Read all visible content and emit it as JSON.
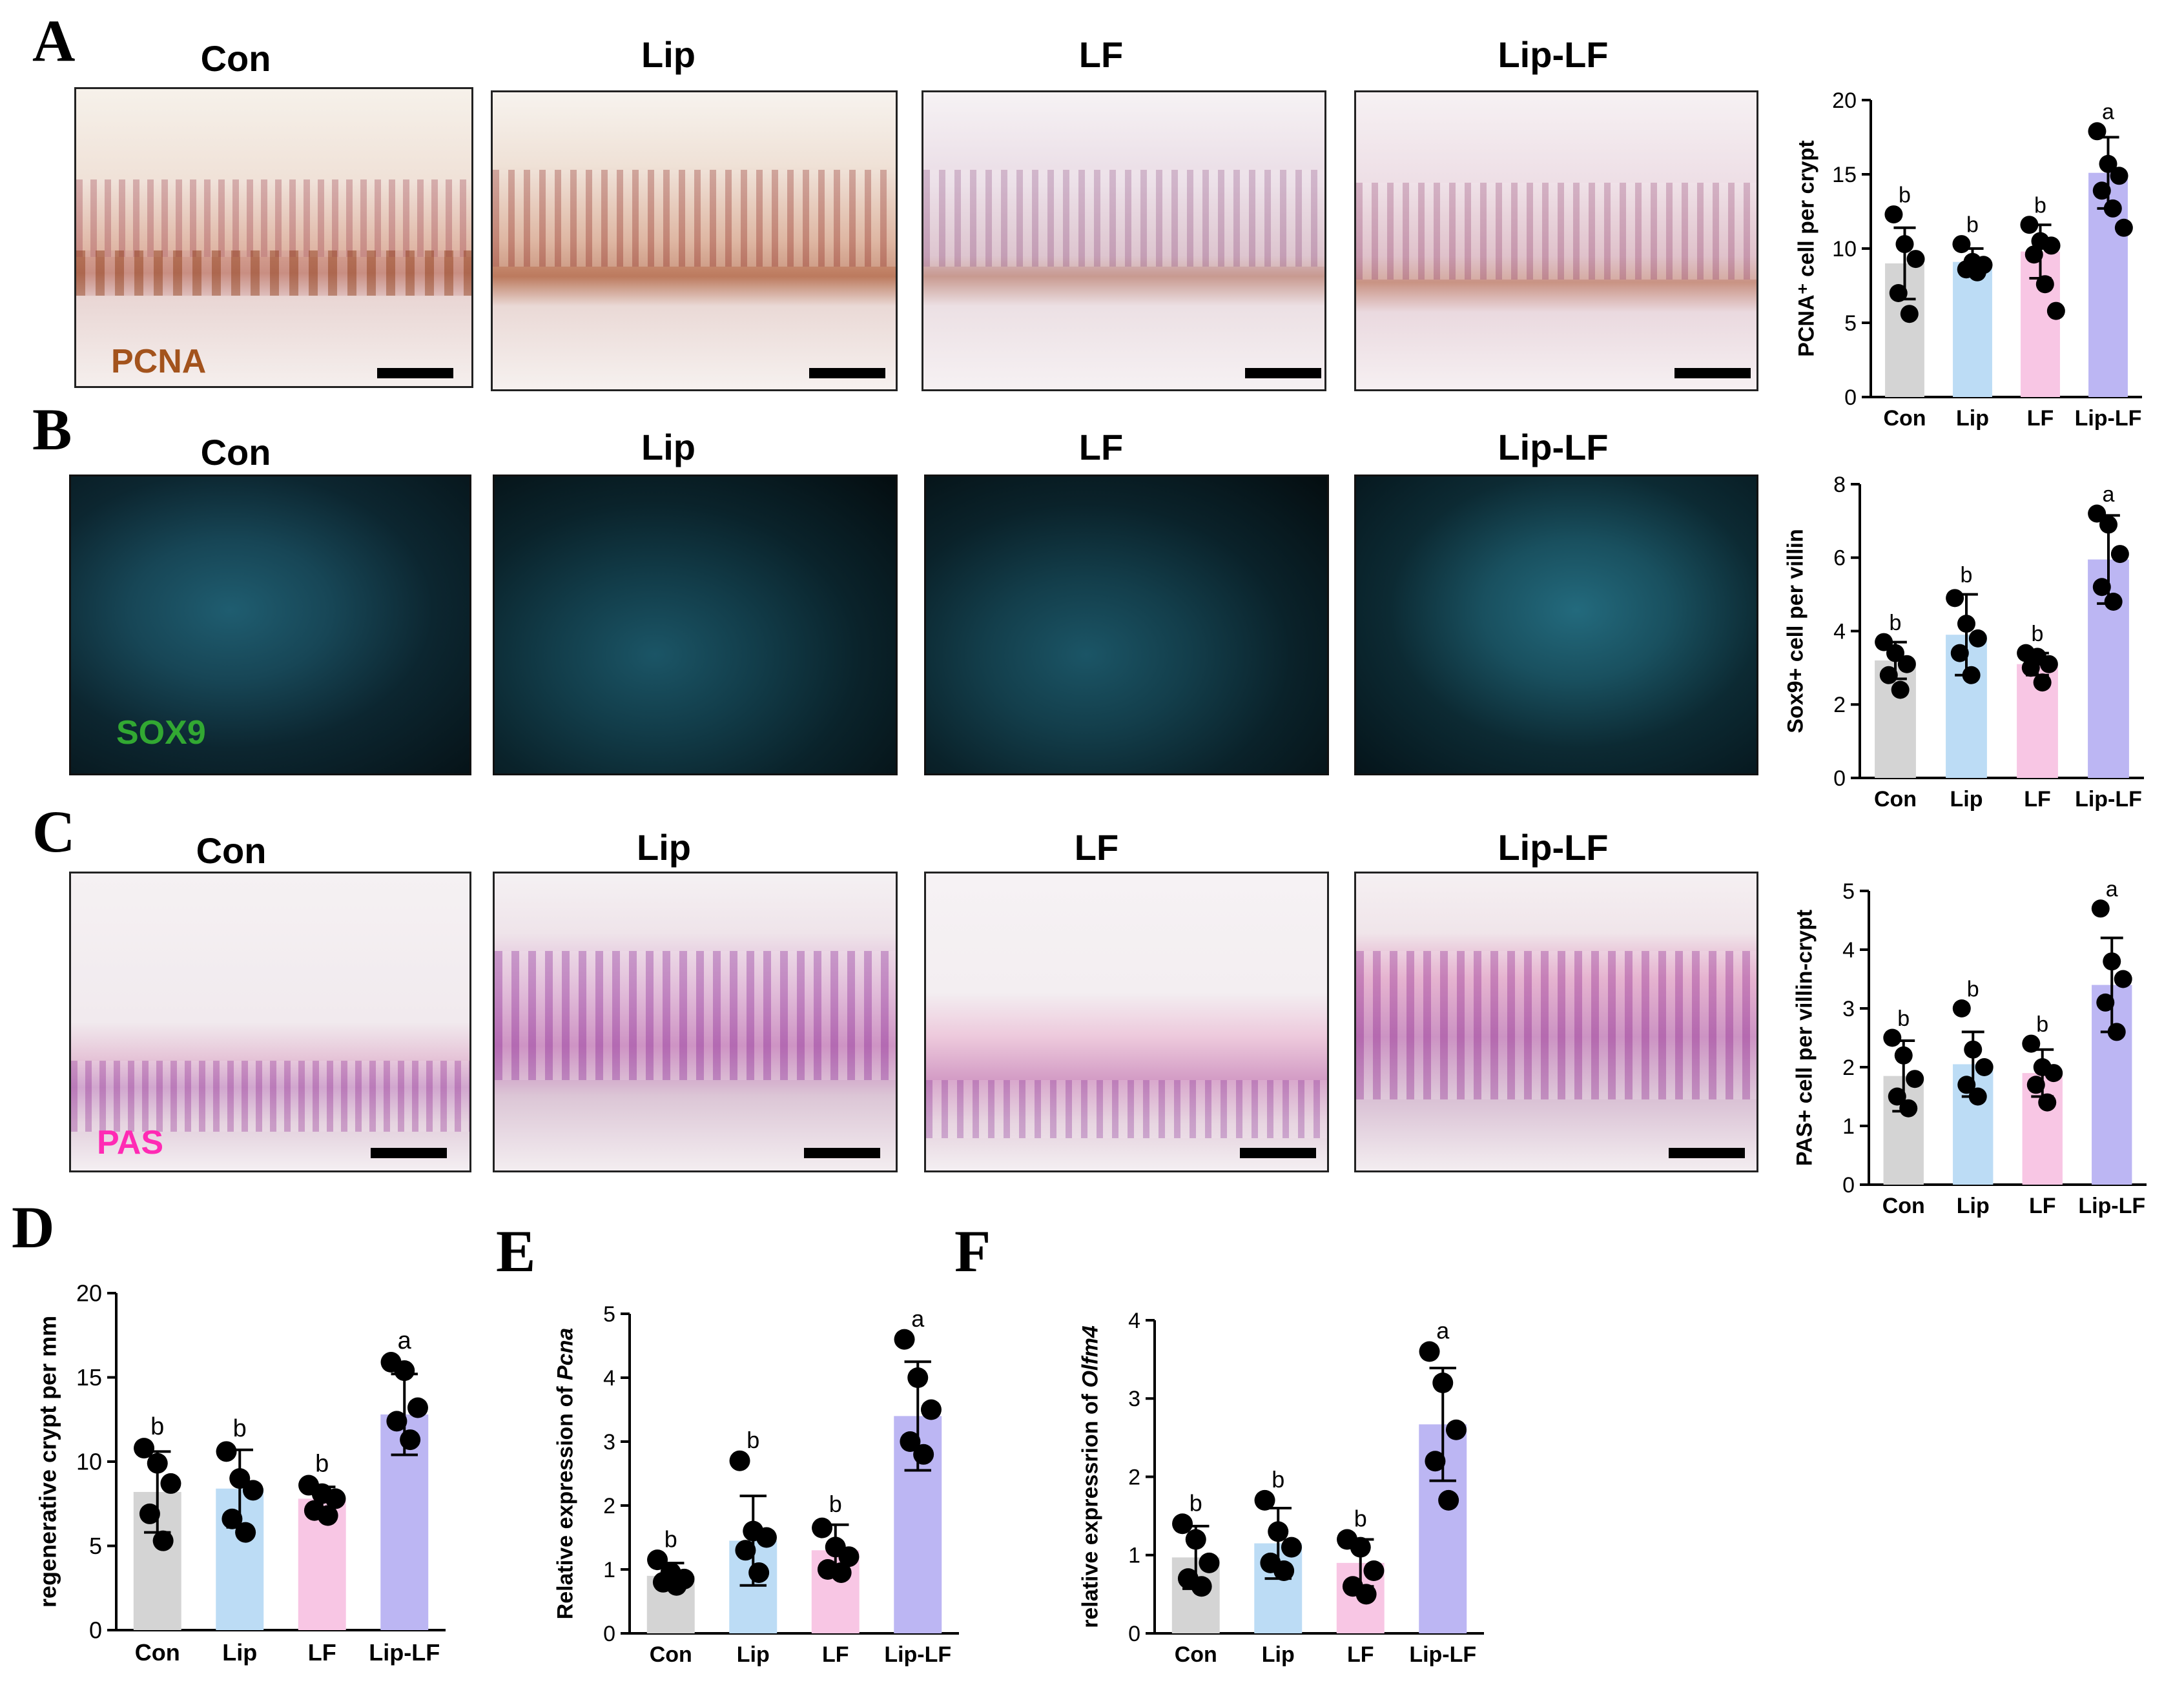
{
  "colors": {
    "con": "#d4d4d4",
    "lip": "#bcdcf5",
    "lf": "#f8c6e4",
    "liplf": "#bcb6f3",
    "pcna_label": "#a3531c",
    "sox9_label": "#32a832",
    "pas_label": "#ff2ab4"
  },
  "panels": {
    "A": {
      "letter": "A",
      "titles": [
        "Con",
        "Lip",
        "LF",
        "Lip-LF"
      ],
      "stain_label": "PCNA"
    },
    "B": {
      "letter": "B",
      "titles": [
        "Con",
        "Lip",
        "LF",
        "Lip-LF"
      ],
      "stain_label": "SOX9"
    },
    "C": {
      "letter": "C",
      "titles": [
        "Con",
        "Lip",
        "LF",
        "Lip-LF"
      ],
      "stain_label": "PAS"
    },
    "D": {
      "letter": "D"
    },
    "E": {
      "letter": "E"
    },
    "F": {
      "letter": "F"
    }
  },
  "chart_data": [
    {
      "id": "A",
      "type": "bar",
      "categories": [
        "Con",
        "Lip",
        "LF",
        "Lip-LF"
      ],
      "values": [
        9.0,
        9.1,
        9.8,
        15.1
      ],
      "errors": [
        2.4,
        0.9,
        1.8,
        2.4
      ],
      "points": [
        [
          12.3,
          10.3,
          9.3,
          7.0,
          5.6
        ],
        [
          10.3,
          9.1,
          8.9,
          8.6,
          8.4
        ],
        [
          11.6,
          10.5,
          10.2,
          9.6,
          7.6,
          5.8
        ],
        [
          17.9,
          15.7,
          14.9,
          13.9,
          12.7,
          11.4
        ]
      ],
      "letters": [
        "b",
        "b",
        "b",
        "a"
      ],
      "ylabel": "PCNA⁺ cell per crypt",
      "ylim": [
        0,
        20
      ],
      "yticks": [
        0,
        5,
        10,
        15,
        20
      ]
    },
    {
      "id": "B",
      "type": "bar",
      "categories": [
        "Con",
        "Lip",
        "LF",
        "Lip-LF"
      ],
      "values": [
        3.2,
        3.9,
        3.1,
        5.95
      ],
      "errors": [
        0.5,
        1.1,
        0.3,
        1.2
      ],
      "points": [
        [
          3.7,
          3.4,
          3.1,
          2.8,
          2.4
        ],
        [
          4.9,
          4.2,
          3.8,
          3.4,
          2.8
        ],
        [
          3.4,
          3.3,
          3.1,
          3.0,
          2.6
        ],
        [
          7.2,
          6.9,
          6.1,
          5.2,
          4.8
        ]
      ],
      "letters": [
        "b",
        "b",
        "b",
        "a"
      ],
      "ylabel": "Sox9+ cell per villin",
      "ylim": [
        0,
        8
      ],
      "yticks": [
        0,
        2,
        4,
        6,
        8
      ]
    },
    {
      "id": "C",
      "type": "bar",
      "categories": [
        "Con",
        "Lip",
        "LF",
        "Lip-LF"
      ],
      "values": [
        1.85,
        2.05,
        1.9,
        3.4
      ],
      "errors": [
        0.6,
        0.55,
        0.4,
        0.8
      ],
      "points": [
        [
          2.5,
          2.2,
          1.8,
          1.5,
          1.3
        ],
        [
          3.0,
          2.3,
          2.0,
          1.7,
          1.5
        ],
        [
          2.4,
          2.0,
          1.9,
          1.7,
          1.4
        ],
        [
          4.7,
          3.8,
          3.5,
          3.1,
          2.6
        ]
      ],
      "letters": [
        "b",
        "b",
        "b",
        "a"
      ],
      "ylabel": "PAS+ cell per villin-crypt",
      "ylim": [
        0,
        5
      ],
      "yticks": [
        0,
        1,
        2,
        3,
        4,
        5
      ]
    },
    {
      "id": "D",
      "type": "bar",
      "categories": [
        "Con",
        "Lip",
        "LF",
        "Lip-LF"
      ],
      "values": [
        8.2,
        8.4,
        7.8,
        12.8
      ],
      "errors": [
        2.4,
        2.3,
        0.7,
        2.4
      ],
      "points": [
        [
          10.8,
          9.9,
          8.7,
          6.9,
          5.3
        ],
        [
          10.6,
          9.0,
          8.3,
          6.6,
          5.8
        ],
        [
          8.6,
          8.1,
          7.8,
          7.1,
          6.8
        ],
        [
          15.9,
          15.4,
          13.2,
          12.4,
          11.3
        ]
      ],
      "letters": [
        "b",
        "b",
        "b",
        "a"
      ],
      "ylabel": "regenerative crypt per mm",
      "ylim": [
        0,
        20
      ],
      "yticks": [
        0,
        5,
        10,
        15,
        20
      ]
    },
    {
      "id": "E",
      "type": "bar",
      "categories": [
        "Con",
        "Lip",
        "LF",
        "Lip-LF"
      ],
      "values": [
        0.9,
        1.45,
        1.3,
        3.4
      ],
      "errors": [
        0.2,
        0.7,
        0.4,
        0.85
      ],
      "points": [
        [
          1.15,
          0.95,
          0.85,
          0.8,
          0.75
        ],
        [
          2.7,
          1.6,
          1.5,
          1.3,
          0.95
        ],
        [
          1.65,
          1.35,
          1.2,
          1.0,
          0.95
        ],
        [
          4.6,
          4.0,
          3.5,
          3.0,
          2.8
        ]
      ],
      "letters": [
        "b",
        "b",
        "b",
        "a"
      ],
      "ylabel": "Relative expression of Pcna",
      "ylabel_plain": "Relative  expression of ",
      "ylabel_italic": "Pcna",
      "ylim": [
        0,
        5
      ],
      "yticks": [
        0,
        1,
        2,
        3,
        4,
        5
      ]
    },
    {
      "id": "F",
      "type": "bar",
      "categories": [
        "Con",
        "Lip",
        "LF",
        "Lip-LF"
      ],
      "values": [
        0.97,
        1.15,
        0.9,
        2.67
      ],
      "errors": [
        0.4,
        0.45,
        0.3,
        0.72
      ],
      "points": [
        [
          1.4,
          1.2,
          0.9,
          0.7,
          0.6
        ],
        [
          1.7,
          1.3,
          1.1,
          0.9,
          0.8
        ],
        [
          1.2,
          1.1,
          0.8,
          0.6,
          0.5
        ],
        [
          3.6,
          3.2,
          2.6,
          2.2,
          1.7
        ]
      ],
      "letters": [
        "b",
        "b",
        "b",
        "a"
      ],
      "ylabel": "relative expressrion of Olfm4",
      "ylabel_plain": "relative expressrion of ",
      "ylabel_italic": "Olfm4",
      "ylim": [
        0,
        4
      ],
      "yticks": [
        0,
        1,
        2,
        3,
        4
      ]
    }
  ]
}
